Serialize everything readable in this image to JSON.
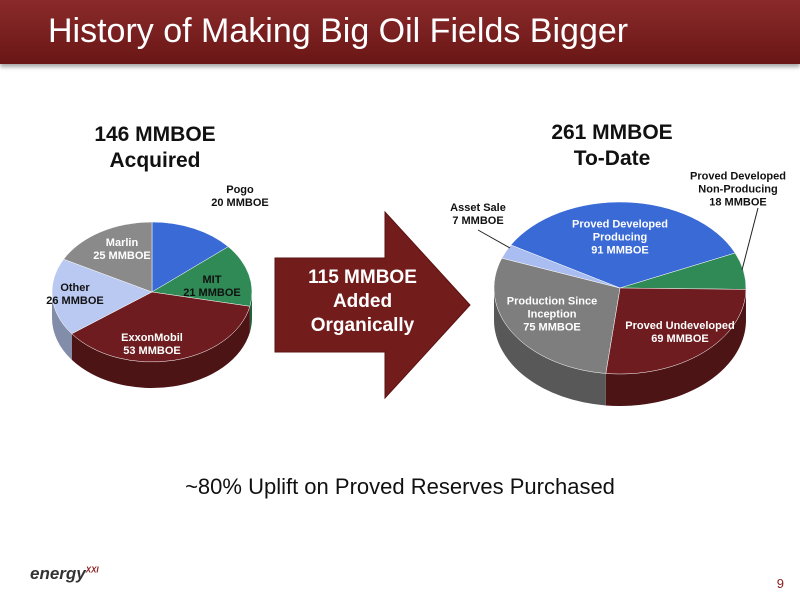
{
  "header": {
    "title": "History of Making Big Oil Fields Bigger"
  },
  "chart_data": [
    {
      "type": "pie",
      "title": "146 MMBOE",
      "subtitle": "Acquired",
      "categories": [
        "Pogo",
        "MIT",
        "ExxonMobil",
        "Other",
        "Marlin"
      ],
      "values": [
        20,
        21,
        53,
        26,
        25
      ],
      "value_labels": [
        "20 MMBOE",
        "21 MMBOE",
        "53 MMBOE",
        "26 MMBOE",
        "25 MMBOE"
      ],
      "colors": [
        "#3a6ad6",
        "#2f8a55",
        "#6e1c1f",
        "#b9c9f2",
        "#8a8a8a"
      ]
    },
    {
      "type": "pie",
      "title": "261 MMBOE",
      "subtitle": "To-Date",
      "categories": [
        "Proved Developed Producing",
        "Proved Developed Non-Producing",
        "Proved Undeveloped",
        "Production Since Inception",
        "Asset Sale"
      ],
      "values": [
        91,
        18,
        69,
        75,
        7
      ],
      "value_labels": [
        "91 MMBOE",
        "18 MMBOE",
        "69 MMBOE",
        "75 MMBOE",
        "7 MMBOE"
      ],
      "colors": [
        "#3a6ad6",
        "#2f8a55",
        "#6e1c1f",
        "#7e7e7e",
        "#a9bdf0"
      ]
    }
  ],
  "arrow": {
    "label": "115 MMBOE Added Organically"
  },
  "footnote": "~80% Uplift on Proved Reserves Purchased",
  "logo": {
    "text": "energy",
    "superscript": "XXI"
  },
  "page_number": "9"
}
